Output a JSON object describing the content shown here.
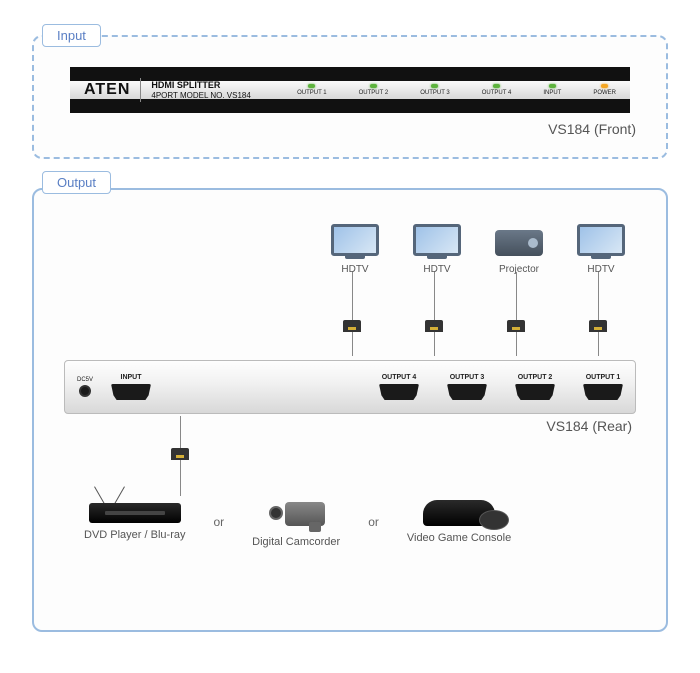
{
  "input_label": "Input",
  "output_label": "Output",
  "brand": "ATEN",
  "subtitle_line1": "HDMI SPLITTER",
  "subtitle_line2": "4PORT MODEL NO. VS184",
  "front_leds": [
    {
      "label": "OUTPUT 1",
      "color": "green"
    },
    {
      "label": "OUTPUT 2",
      "color": "green"
    },
    {
      "label": "OUTPUT 3",
      "color": "green"
    },
    {
      "label": "OUTPUT 4",
      "color": "green"
    },
    {
      "label": "INPUT",
      "color": "green"
    },
    {
      "label": "POWER",
      "color": "orange"
    }
  ],
  "front_caption": "VS184 (Front)",
  "rear_caption": "VS184 (Rear)",
  "displays": [
    {
      "type": "monitor",
      "label": "HDTV"
    },
    {
      "type": "monitor",
      "label": "HDTV"
    },
    {
      "type": "projector",
      "label": "Projector"
    },
    {
      "type": "monitor",
      "label": "HDTV"
    }
  ],
  "rear_ports": {
    "dc_label": "DC5V",
    "input_label": "INPUT",
    "outputs": [
      "OUTPUT 4",
      "OUTPUT 3",
      "OUTPUT 2",
      "OUTPUT 1"
    ]
  },
  "sources": [
    {
      "label": "DVD Player / Blu-ray"
    },
    {
      "label": "Digital Camcorder"
    },
    {
      "label": "Video Game Console"
    }
  ],
  "or_text": "or",
  "colors": {
    "border": "#9bbce0",
    "label_text": "#5a7fc4",
    "caption": "#555",
    "led_green": "#5db33d",
    "led_orange": "#f5a623",
    "device_black": "#111",
    "device_gradient_light": "#fafafa",
    "device_gradient_dark": "#d8d8d8"
  }
}
